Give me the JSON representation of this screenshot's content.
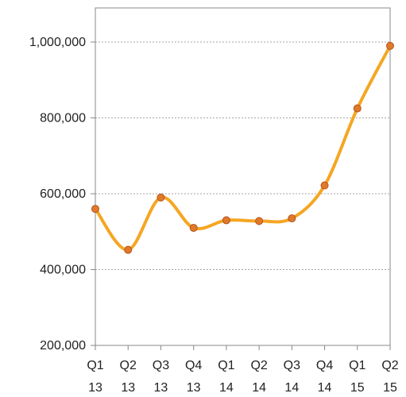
{
  "chart_data": {
    "type": "line",
    "categories": [
      "Q1 13",
      "Q2 13",
      "Q3 13",
      "Q4 13",
      "Q1 14",
      "Q2 14",
      "Q3 14",
      "Q4 14",
      "Q1 15",
      "Q2 15"
    ],
    "category_lines": [
      [
        "Q1",
        "13"
      ],
      [
        "Q2",
        "13"
      ],
      [
        "Q3",
        "13"
      ],
      [
        "Q4",
        "13"
      ],
      [
        "Q1",
        "14"
      ],
      [
        "Q2",
        "14"
      ],
      [
        "Q3",
        "14"
      ],
      [
        "Q4",
        "14"
      ],
      [
        "Q1",
        "15"
      ],
      [
        "Q2",
        "15"
      ]
    ],
    "series": [
      {
        "values": [
          560000,
          452000,
          590000,
          510000,
          530000,
          528000,
          535000,
          622000,
          825000,
          990000
        ]
      }
    ],
    "ylim": [
      200000,
      1090000
    ],
    "yticks": [
      200000,
      400000,
      600000,
      800000,
      1000000
    ],
    "ytick_labels": [
      "200,000",
      "400,000",
      "600,000",
      "800,000",
      "1,000,000"
    ],
    "grid": true,
    "title": "",
    "xlabel": "",
    "ylabel": "",
    "colors": {
      "line": "#F5A623",
      "marker_fill": "#E07A2A",
      "marker_edge": "#B4531A",
      "grid": "#888888",
      "axis": "#888888"
    }
  }
}
